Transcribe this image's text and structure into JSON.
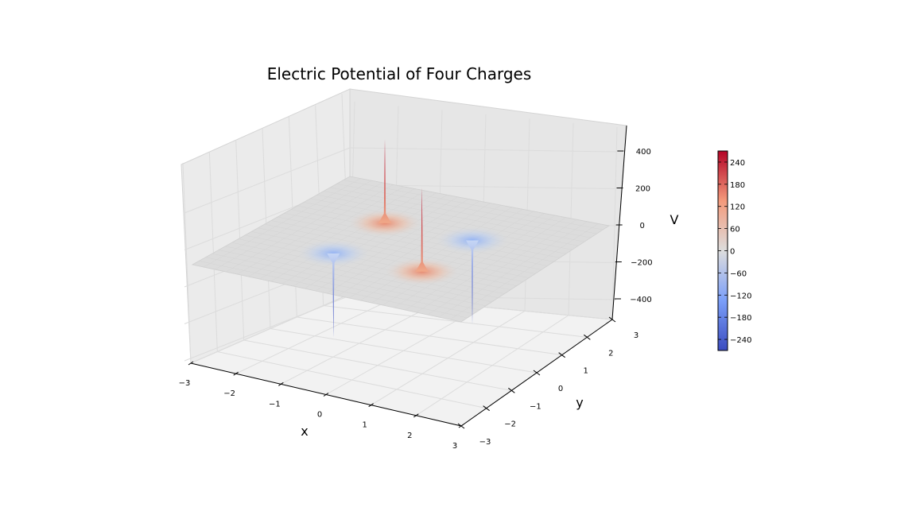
{
  "chart_data": {
    "type": "surface3d",
    "title": "Electric Potential of Four Charges",
    "xlabel": "x",
    "ylabel": "y",
    "zlabel": "V",
    "xlim": [
      -3,
      3
    ],
    "ylim": [
      -3,
      3
    ],
    "zlim": [
      -500,
      500
    ],
    "xticks": [
      "−3",
      "−2",
      "−1",
      "0",
      "1",
      "2",
      "3"
    ],
    "yticks": [
      "−3",
      "−2",
      "−1",
      "0",
      "1",
      "2",
      "3"
    ],
    "zticks": [
      "−400",
      "−200",
      "0",
      "200",
      "400"
    ],
    "x_tick_values": [
      -3,
      -2,
      -1,
      0,
      1,
      2,
      3
    ],
    "y_tick_values": [
      -3,
      -2,
      -1,
      0,
      1,
      2,
      3
    ],
    "z_tick_values": [
      -400,
      -200,
      0,
      200,
      400
    ],
    "colormap": "coolwarm",
    "grid": true,
    "charges": [
      {
        "x": -1,
        "y": 1,
        "sign": 1,
        "peak_V": 450
      },
      {
        "x": 1,
        "y": -1,
        "sign": 1,
        "peak_V": 450
      },
      {
        "x": -1,
        "y": -1,
        "sign": -1,
        "peak_V": -450
      },
      {
        "x": 1,
        "y": 1,
        "sign": -1,
        "peak_V": -450
      }
    ],
    "colorbar": {
      "ticks": [
        "240",
        "180",
        "120",
        "60",
        "0",
        "−60",
        "−120",
        "−180",
        "−240"
      ],
      "tick_values": [
        240,
        180,
        120,
        60,
        0,
        -60,
        -120,
        -180,
        -240
      ],
      "range": [
        -270,
        270
      ]
    }
  }
}
